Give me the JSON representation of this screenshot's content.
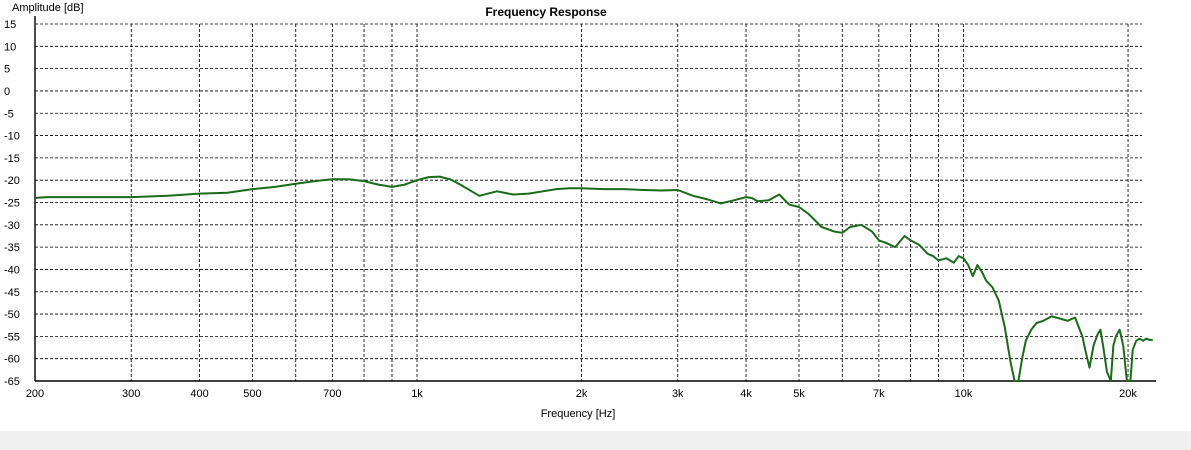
{
  "chart_data": {
    "type": "line",
    "title": "Frequency Response",
    "xlabel": "Frequency [Hz]",
    "ylabel": "Amplitude [dB]",
    "x_scale": "log",
    "xlim": [
      200,
      22500
    ],
    "ylim": [
      -65,
      15
    ],
    "grid": true,
    "x_grid_lines": [
      300,
      400,
      500,
      600,
      700,
      800,
      900,
      1000,
      2000,
      3000,
      4000,
      5000,
      6000,
      7000,
      8000,
      9000,
      10000,
      20000
    ],
    "x_ticks": [
      {
        "value": 200,
        "label": "200"
      },
      {
        "value": 300,
        "label": "300"
      },
      {
        "value": 400,
        "label": "400"
      },
      {
        "value": 500,
        "label": "500"
      },
      {
        "value": 700,
        "label": "700"
      },
      {
        "value": 1000,
        "label": "1k"
      },
      {
        "value": 2000,
        "label": "2k"
      },
      {
        "value": 3000,
        "label": "3k"
      },
      {
        "value": 4000,
        "label": "4k"
      },
      {
        "value": 5000,
        "label": "5k"
      },
      {
        "value": 7000,
        "label": "7k"
      },
      {
        "value": 10000,
        "label": "10k"
      },
      {
        "value": 20000,
        "label": "20k"
      }
    ],
    "y_ticks": [
      15,
      10,
      5,
      0,
      -5,
      -10,
      -15,
      -20,
      -25,
      -30,
      -35,
      -40,
      -45,
      -50,
      -55,
      -60,
      -65
    ],
    "series": [
      {
        "color": "#1a6b1a",
        "x": [
          200,
          210,
          250,
          300,
          350,
          400,
          450,
          500,
          550,
          600,
          650,
          700,
          750,
          800,
          850,
          900,
          950,
          1000,
          1050,
          1100,
          1150,
          1200,
          1300,
          1400,
          1500,
          1600,
          1700,
          1800,
          1900,
          2000,
          2200,
          2400,
          2600,
          2800,
          3000,
          3200,
          3400,
          3600,
          3800,
          4000,
          4100,
          4200,
          4400,
          4600,
          4800,
          5000,
          5200,
          5500,
          5800,
          6000,
          6200,
          6500,
          6800,
          7000,
          7200,
          7500,
          7800,
          8000,
          8300,
          8600,
          8800,
          9000,
          9300,
          9600,
          9800,
          10000,
          10200,
          10400,
          10600,
          10800,
          11000,
          11300,
          11600,
          11900,
          12200,
          12400,
          12600,
          12800,
          13000,
          13300,
          13600,
          14000,
          14500,
          15000,
          15500,
          16000,
          16200,
          16500,
          16700,
          17000,
          17300,
          17600,
          17800,
          18000,
          18300,
          18600,
          18800,
          19000,
          19300,
          19600,
          19900,
          20200,
          20400,
          20700,
          21000,
          21300,
          21600,
          21900,
          22200
        ],
        "y": [
          -24,
          -23.8,
          -23.8,
          -23.8,
          -23.5,
          -23,
          -22.8,
          -22,
          -21.5,
          -20.8,
          -20.2,
          -19.8,
          -19.8,
          -20.2,
          -21,
          -21.5,
          -21,
          -20,
          -19.3,
          -19.2,
          -19.8,
          -21,
          -23.5,
          -22.5,
          -23.2,
          -23,
          -22.5,
          -22,
          -21.8,
          -21.8,
          -22,
          -22,
          -22.2,
          -22.3,
          -22.2,
          -23.5,
          -24.3,
          -25.2,
          -24.5,
          -23.8,
          -24,
          -24.7,
          -24.5,
          -23.2,
          -25.5,
          -26,
          -27.5,
          -30.5,
          -31.5,
          -31.8,
          -30.5,
          -30,
          -31.5,
          -33.5,
          -34,
          -35,
          -32.5,
          -33.5,
          -34.5,
          -36.5,
          -37,
          -38,
          -37.5,
          -38.5,
          -37,
          -37.5,
          -39,
          -41.5,
          -39,
          -40.5,
          -42.5,
          -44,
          -47,
          -53,
          -61,
          -65,
          -65,
          -60,
          -56,
          -53.5,
          -52,
          -51.5,
          -50.5,
          -51,
          -51.5,
          -50.8,
          -52.5,
          -55,
          -58,
          -62,
          -57,
          -54.5,
          -53.5,
          -57,
          -63,
          -65,
          -57,
          -55,
          -53.5,
          -57,
          -65,
          -65,
          -58,
          -56,
          -55.5,
          -56,
          -55.5,
          -55.8,
          -55.8
        ]
      }
    ]
  }
}
